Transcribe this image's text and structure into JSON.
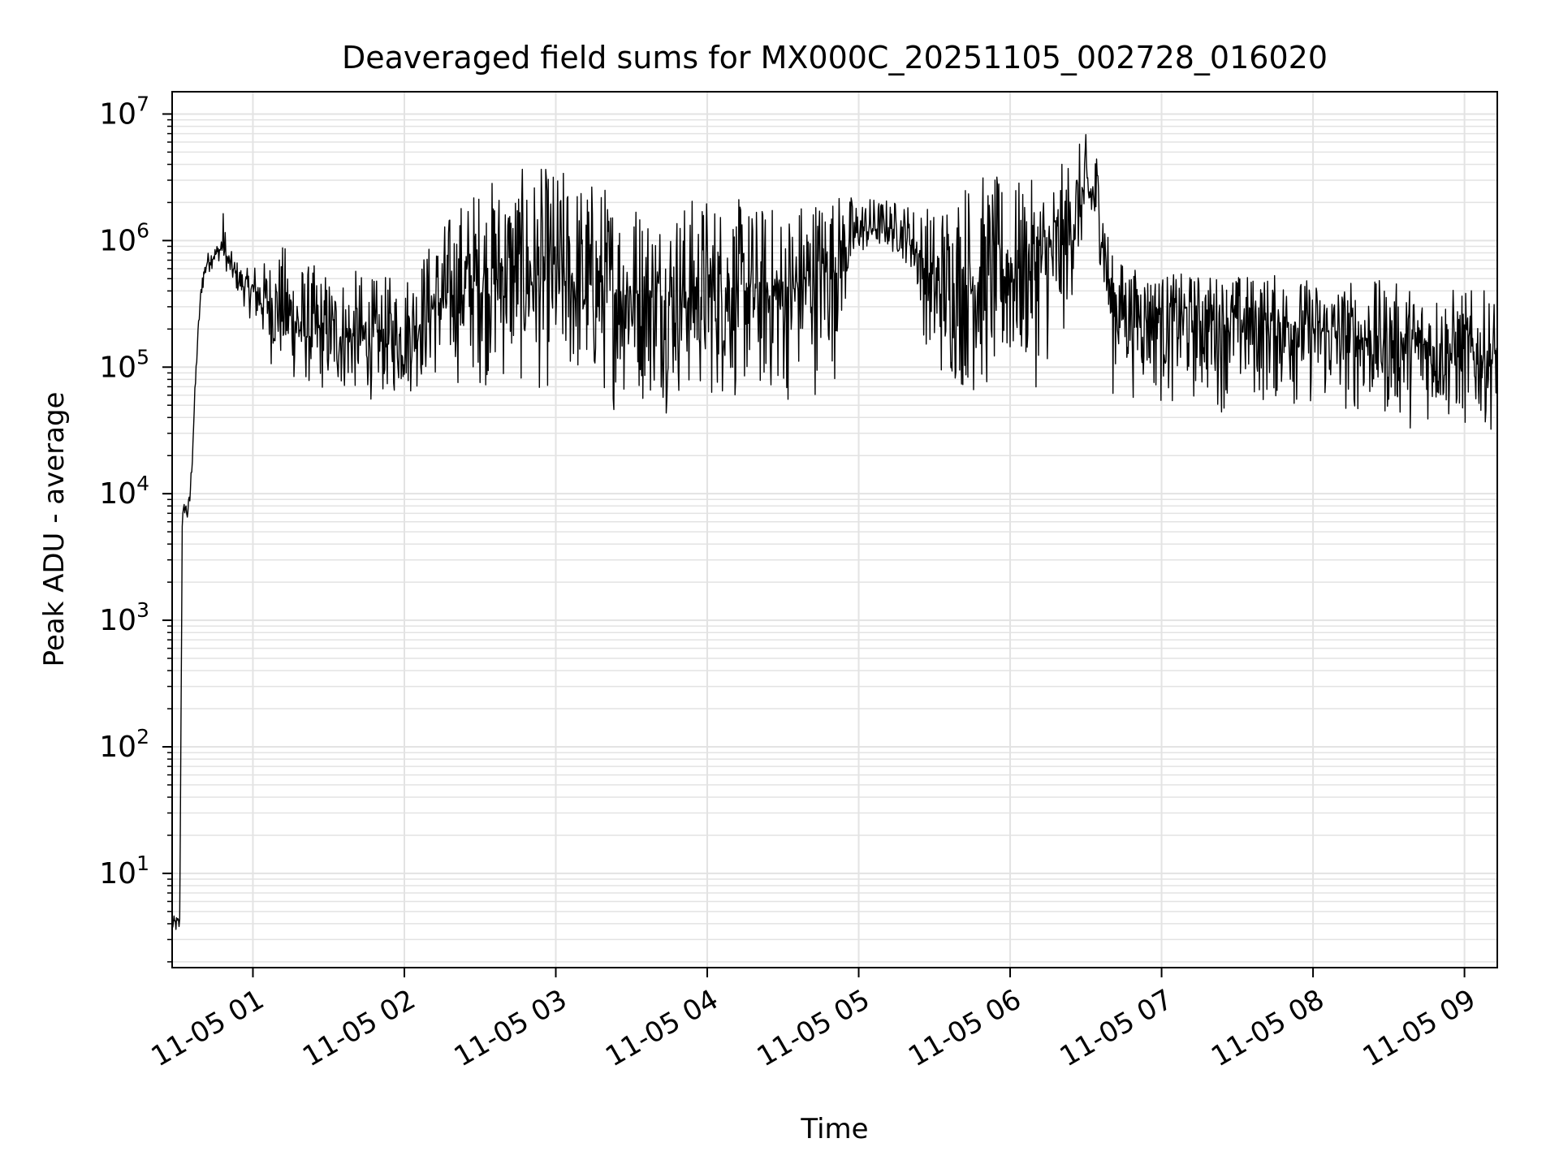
{
  "chart_data": {
    "type": "line",
    "title": "Deaveraged field sums for MX000C_20251105_002728_016020",
    "xlabel": "Time",
    "ylabel": "Peak ADU - average",
    "yscale": "log",
    "ylim": [
      1.8,
      15000000
    ],
    "xlim": [
      "11-05 00:28",
      "11-05 09:13"
    ],
    "grid": true,
    "x_ticks": [
      "11-05 01",
      "11-05 02",
      "11-05 03",
      "11-05 04",
      "11-05 05",
      "11-05 06",
      "11-05 07",
      "11-05 08",
      "11-05 09"
    ],
    "y_ticks": [
      {
        "base": "10",
        "exp": "1",
        "value": 10
      },
      {
        "base": "10",
        "exp": "2",
        "value": 100
      },
      {
        "base": "10",
        "exp": "3",
        "value": 1000
      },
      {
        "base": "10",
        "exp": "4",
        "value": 10000
      },
      {
        "base": "10",
        "exp": "5",
        "value": 100000
      },
      {
        "base": "10",
        "exp": "6",
        "value": 1000000
      },
      {
        "base": "10",
        "exp": "7",
        "value": 10000000
      }
    ],
    "series": [
      {
        "color": "#000000",
        "x": [
          "00:28",
          "00:29",
          "00:30",
          "00:31",
          "00:32",
          "00:33",
          "00:34",
          "00:35",
          "00:36",
          "00:37",
          "00:38",
          "00:39",
          "00:40",
          "00:42",
          "00:44",
          "00:46",
          "00:48",
          "00:50",
          "00:52",
          "00:54",
          "00:56",
          "00:58",
          "01:00",
          "01:05",
          "01:10",
          "01:15",
          "01:20",
          "01:30",
          "01:40",
          "01:50",
          "02:00",
          "02:10",
          "02:20",
          "02:30",
          "02:40",
          "02:50",
          "03:00",
          "03:10",
          "03:20",
          "03:30",
          "03:40",
          "03:50",
          "04:00",
          "04:10",
          "04:20",
          "04:30",
          "04:40",
          "04:50",
          "05:00",
          "05:10",
          "05:20",
          "05:30",
          "05:40",
          "05:50",
          "06:00",
          "06:10",
          "06:20",
          "06:30",
          "06:35",
          "06:40",
          "06:50",
          "07:00",
          "07:10",
          "07:20",
          "07:30",
          "07:40",
          "07:50",
          "08:00",
          "08:10",
          "08:20",
          "08:30",
          "08:40",
          "08:50",
          "09:00",
          "09:10",
          "09:13"
        ],
        "y": [
          4,
          4,
          4,
          4,
          6000,
          8000,
          7000,
          9000,
          20000,
          60000,
          150000,
          300000,
          500000,
          700000,
          750000,
          800000,
          900000,
          700000,
          600000,
          500000,
          450000,
          420000,
          400000,
          350000,
          300000,
          250000,
          200000,
          180000,
          170000,
          160000,
          170000,
          300000,
          400000,
          500000,
          600000,
          550000,
          500000,
          450000,
          400000,
          380000,
          350000,
          370000,
          400000,
          420000,
          380000,
          350000,
          500000,
          700000,
          1200000,
          1300000,
          1100000,
          400000,
          450000,
          500000,
          600000,
          700000,
          800000,
          2500000,
          2000000,
          350000,
          300000,
          280000,
          260000,
          250000,
          240000,
          230000,
          220000,
          200000,
          180000,
          170000,
          160000,
          150000,
          140000,
          130000,
          120000,
          120000
        ],
        "noise_band_low": [
          4,
          4,
          4,
          4,
          5000,
          6000,
          6000,
          6000,
          15000,
          40000,
          100000,
          200000,
          350000,
          500000,
          600000,
          650000,
          700000,
          500000,
          400000,
          350000,
          300000,
          250000,
          200000,
          100000,
          80000,
          60000,
          60000,
          50000,
          50000,
          50000,
          50000,
          60000,
          60000,
          60000,
          50000,
          50000,
          50000,
          50000,
          40000,
          40000,
          40000,
          40000,
          40000,
          40000,
          40000,
          40000,
          50000,
          60000,
          700000,
          800000,
          600000,
          60000,
          50000,
          40000,
          50000,
          60000,
          100000,
          1000000,
          800000,
          50000,
          50000,
          40000,
          40000,
          40000,
          40000,
          40000,
          40000,
          40000,
          35000,
          35000,
          30000,
          30000,
          30000,
          25000,
          30000,
          40000
        ],
        "noise_band_high": [
          4,
          4,
          4,
          4,
          7000,
          9000,
          10000,
          15000,
          25000,
          80000,
          200000,
          400000,
          600000,
          800000,
          900000,
          1000000,
          2000000,
          900000,
          800000,
          700000,
          650000,
          600000,
          700000,
          700000,
          900000,
          1000000,
          700000,
          600000,
          600000,
          500000,
          600000,
          1000000,
          2000000,
          3000000,
          3500000,
          3800000,
          4000000,
          3500000,
          3000000,
          2500000,
          2000000,
          2200000,
          2500000,
          2200000,
          2000000,
          2000000,
          2500000,
          2500000,
          2300000,
          2200000,
          2000000,
          2000000,
          3500000,
          3500000,
          3000000,
          3000000,
          4000000,
          7000000,
          6000000,
          800000,
          600000,
          550000,
          550000,
          550000,
          550000,
          550000,
          550000,
          500000,
          500000,
          500000,
          480000,
          450000,
          450000,
          420000,
          400000,
          400000
        ]
      }
    ]
  }
}
